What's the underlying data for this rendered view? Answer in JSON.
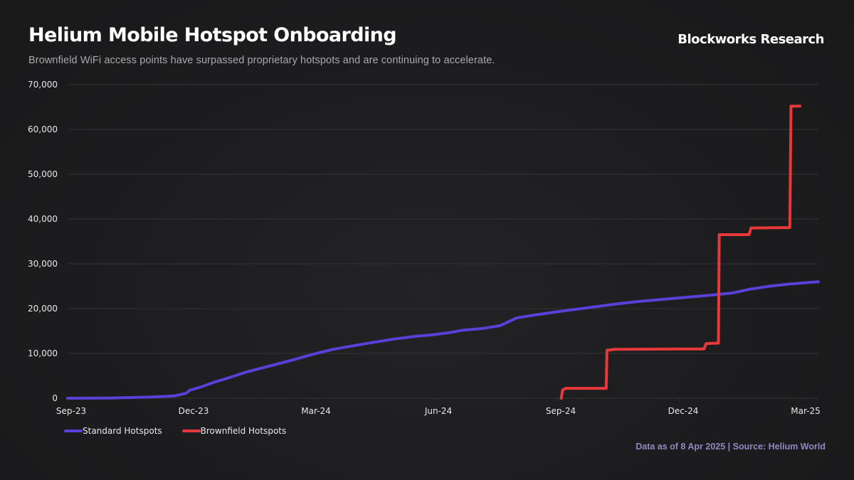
{
  "header": {
    "title": "Helium Mobile Hotspot Onboarding",
    "subtitle": "Brownfield WiFi access points have surpassed proprietary hotspots and are continuing to accelerate.",
    "brand": "Blockworks Research"
  },
  "footer": {
    "source": "Data as of 8 Apr 2025 | Source: Helium World"
  },
  "colors": {
    "standard": "#5b3fd9",
    "brownfield": "#e8383a",
    "grid": "#333335",
    "footer": "#8f88c4"
  },
  "chart_data": {
    "type": "line",
    "title": "Helium Mobile Hotspot Onboarding",
    "subtitle": "Brownfield WiFi access points have surpassed proprietary hotspots and are continuing to accelerate.",
    "xlabel": "",
    "ylabel": "",
    "x_unit": "months since Sep-23",
    "xlim": [
      0,
      18.4
    ],
    "ylim": [
      0,
      70000
    ],
    "grid": true,
    "legend_position": "bottom-left",
    "x_ticks": [
      {
        "value": 0,
        "label": "Sep-23"
      },
      {
        "value": 3,
        "label": "Dec-23"
      },
      {
        "value": 6,
        "label": "Mar-24"
      },
      {
        "value": 9,
        "label": "Jun-24"
      },
      {
        "value": 12,
        "label": "Sep-24"
      },
      {
        "value": 15,
        "label": "Dec-24"
      },
      {
        "value": 18,
        "label": "Mar-25"
      }
    ],
    "y_ticks": [
      {
        "value": 0,
        "label": "0"
      },
      {
        "value": 10000,
        "label": "10,000"
      },
      {
        "value": 20000,
        "label": "20,000"
      },
      {
        "value": 30000,
        "label": "30,000"
      },
      {
        "value": 40000,
        "label": "40,000"
      },
      {
        "value": 50000,
        "label": "50,000"
      },
      {
        "value": 60000,
        "label": "60,000"
      },
      {
        "value": 70000,
        "label": "70,000"
      }
    ],
    "series": [
      {
        "name": "Standard Hotspots",
        "color": "#5b3fd9",
        "points": [
          [
            0,
            0
          ],
          [
            1,
            50
          ],
          [
            2,
            250
          ],
          [
            2.6,
            500
          ],
          [
            2.9,
            1100
          ],
          [
            3.0,
            1800
          ],
          [
            3.3,
            2600
          ],
          [
            3.6,
            3600
          ],
          [
            4.0,
            4700
          ],
          [
            4.4,
            5900
          ],
          [
            5.0,
            7300
          ],
          [
            5.5,
            8500
          ],
          [
            6.0,
            9800
          ],
          [
            6.5,
            10900
          ],
          [
            7.0,
            11700
          ],
          [
            7.5,
            12500
          ],
          [
            8.0,
            13200
          ],
          [
            8.5,
            13800
          ],
          [
            9.0,
            14200
          ],
          [
            9.4,
            14700
          ],
          [
            9.7,
            15200
          ],
          [
            10.2,
            15600
          ],
          [
            10.6,
            16200
          ],
          [
            11.0,
            17900
          ],
          [
            11.4,
            18500
          ],
          [
            12.0,
            19300
          ],
          [
            12.5,
            19900
          ],
          [
            13.0,
            20500
          ],
          [
            13.5,
            21100
          ],
          [
            14.0,
            21600
          ],
          [
            14.5,
            22000
          ],
          [
            15.0,
            22400
          ],
          [
            15.5,
            22800
          ],
          [
            16.0,
            23200
          ],
          [
            16.3,
            23500
          ],
          [
            16.7,
            24300
          ],
          [
            17.2,
            25000
          ],
          [
            17.7,
            25500
          ],
          [
            18.4,
            26000
          ]
        ]
      },
      {
        "name": "Brownfield Hotspots",
        "color": "#e8383a",
        "points": [
          [
            12.1,
            0
          ],
          [
            12.13,
            1800
          ],
          [
            12.2,
            2200
          ],
          [
            13.2,
            2200
          ],
          [
            13.22,
            10700
          ],
          [
            13.4,
            10900
          ],
          [
            15.0,
            11000
          ],
          [
            15.6,
            11000
          ],
          [
            15.65,
            12200
          ],
          [
            15.95,
            12300
          ],
          [
            15.97,
            36500
          ],
          [
            16.7,
            36500
          ],
          [
            16.75,
            38000
          ],
          [
            17.7,
            38100
          ],
          [
            17.73,
            65200
          ],
          [
            17.95,
            65200
          ]
        ]
      }
    ]
  }
}
